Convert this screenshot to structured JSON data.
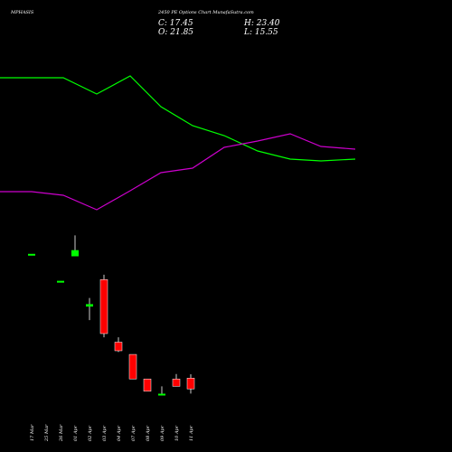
{
  "header": {
    "symbol": "MPHASIS",
    "subtitle": "2450 PE Options Chart MunafaSutra.com",
    "close_label": "C: 17.45",
    "high_label": "H: 23.40",
    "open_label": "O: 21.85",
    "low_label": "L: 15.55"
  },
  "colors": {
    "background": "#000000",
    "up": "#00ff00",
    "down": "#ff0000",
    "line_green": "#00ff00",
    "line_magenta": "#cc00cc",
    "wick": "#ffffff"
  },
  "chart_data": {
    "type": "candlestick",
    "categories": [
      "17 Mar",
      "25 Mar",
      "26 Mar",
      "01 Apr",
      "02 Apr",
      "03 Apr",
      "04 Apr",
      "07 Apr",
      "08 Apr",
      "09 Apr",
      "10 Apr",
      "11 Apr"
    ],
    "ohlc": [
      {
        "open": 72.5,
        "high": 72.5,
        "low": 72.5,
        "close": 72.5
      },
      null,
      {
        "open": 61.5,
        "high": 61.5,
        "low": 61.5,
        "close": 61.5
      },
      {
        "open": 71.5,
        "high": 80,
        "low": 71.5,
        "close": 74
      },
      {
        "open": 51,
        "high": 54.5,
        "low": 45.5,
        "close": 52
      },
      {
        "open": 62,
        "high": 64,
        "low": 38.5,
        "close": 40
      },
      {
        "open": 36.5,
        "high": 38.5,
        "low": 32.5,
        "close": 33
      },
      {
        "open": 31.5,
        "high": 31.5,
        "low": 21.5,
        "close": 21.5
      },
      {
        "open": 21.5,
        "high": 21.5,
        "low": 16.5,
        "close": 16.5
      },
      {
        "open": 15.5,
        "high": 18.5,
        "low": 15.5,
        "close": 15.5
      },
      {
        "open": 21.5,
        "high": 23.5,
        "low": 18.5,
        "close": 18.5
      },
      {
        "open": 21.85,
        "high": 23.4,
        "low": 15.55,
        "close": 17.45
      }
    ],
    "y_range": [
      12,
      82
    ],
    "overlay_lines": [
      {
        "color": "green",
        "values": [
          86,
          86,
          86,
          104,
          84,
          118,
          139,
          150,
          167,
          176,
          178,
          176,
          176
        ]
      },
      {
        "color": "magenta",
        "values": [
          212,
          212,
          216,
          232,
          211,
          191,
          186,
          163,
          156,
          148,
          162,
          165,
          165
        ]
      },
      {
        "color": "green",
        "values": [
          null
        ]
      }
    ],
    "overlay_x": [
      0,
      35,
      70,
      107,
      144,
      178,
      213,
      248,
      285,
      321,
      355,
      393,
      393
    ]
  }
}
